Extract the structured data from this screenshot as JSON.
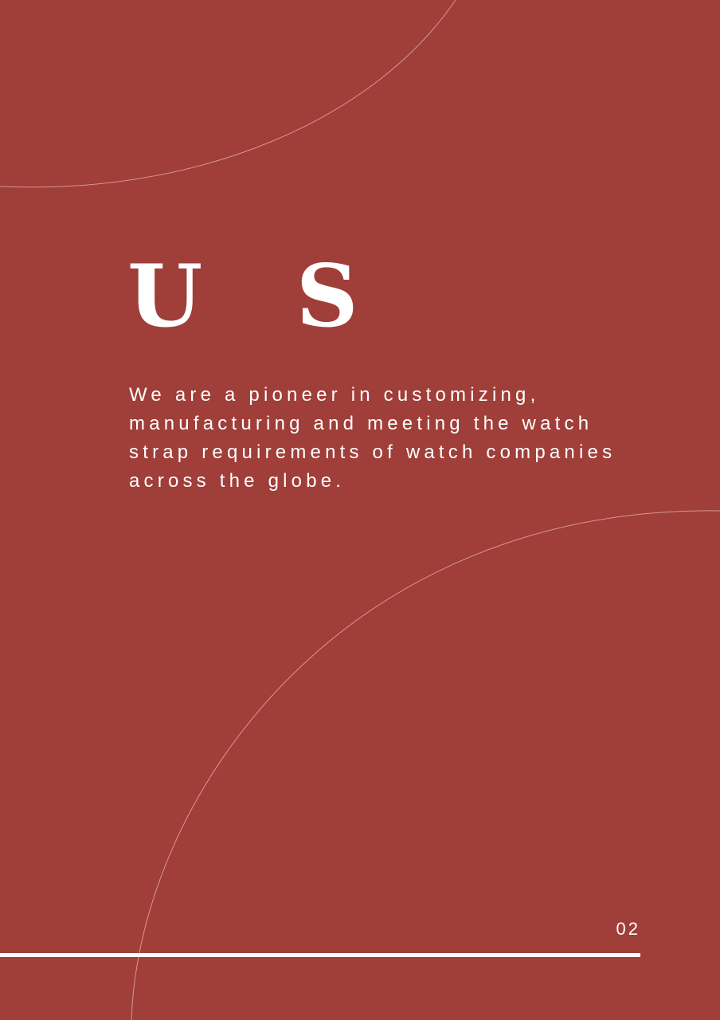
{
  "heading": "U  S",
  "body": "We are a pioneer in customizing, manufacturing and meeting the watch strap requirements of watch companies across the globe.",
  "page_number": "02",
  "colors": {
    "background": "#a03e39",
    "text": "#ffffff",
    "decorative_lines": "#e8b5b1"
  }
}
